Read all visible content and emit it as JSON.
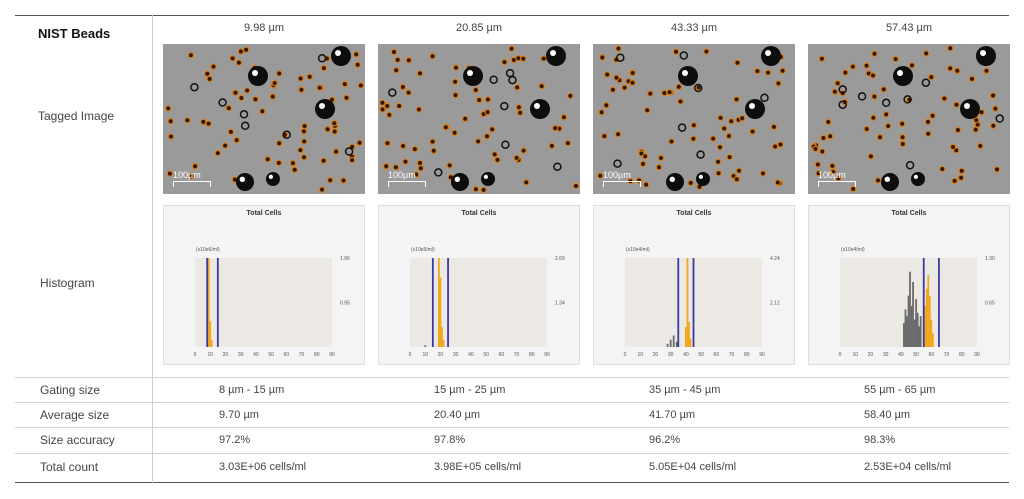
{
  "header": {
    "label": "NIST Beads"
  },
  "columns": [
    {
      "size": "9.98 µm",
      "unit": "(x10e6/ml)",
      "ymax": "1.90",
      "ymid": "0.95",
      "gating": "8 µm - 15 µm",
      "average": "9.70 µm",
      "accuracy": "97.2%",
      "count": "3.03E+06 cells/ml"
    },
    {
      "size": "20.85 µm",
      "unit": "(x10e5/ml)",
      "ymax": "2.69",
      "ymid": "1.34",
      "gating": "15 µm - 25 µm",
      "average": "20.40 µm",
      "accuracy": "97.8%",
      "count": "3.98E+05 cells/ml"
    },
    {
      "size": "43.33 µm",
      "unit": "(x10e4/ml)",
      "ymax": "4.24",
      "ymid": "2.12",
      "gating": "35 µm - 45 µm",
      "average": "41.70 µm",
      "accuracy": "96.2%",
      "count": "5.05E+04 cells/ml"
    },
    {
      "size": "57.43 µm",
      "unit": "(x10e4/ml)",
      "ymax": "1.30",
      "ymid": "0.65",
      "gating": "55 µm - 65 µm",
      "average": "58.40 µm",
      "accuracy": "98.3%",
      "count": "2.53E+04 cells/ml"
    }
  ],
  "row_labels": {
    "tagged": "Tagged Image",
    "histogram": "Histogram",
    "gating": "Gating size",
    "average": "Average size",
    "accuracy": "Size accuracy",
    "count": "Total count"
  },
  "image_scale": "100µm",
  "hist_title": "Total Cells",
  "hist_xticks": [
    "0",
    "10",
    "20",
    "30",
    "40",
    "50",
    "60",
    "70",
    "80",
    "90"
  ],
  "colors": {
    "gate": "#3a3aa0",
    "in_gate": "#f0a81e",
    "out_gate": "#6b6b6b",
    "tag": "#e07b12"
  },
  "chart_data": [
    {
      "type": "bar",
      "title": "Total Cells",
      "xlim": [
        0,
        90
      ],
      "gates": [
        8,
        15
      ],
      "bars": [
        {
          "x": 9,
          "y": 1.9,
          "in": true
        },
        {
          "x": 10,
          "y": 0.55,
          "in": true
        },
        {
          "x": 11,
          "y": 0.15,
          "in": true
        }
      ]
    },
    {
      "type": "bar",
      "title": "Total Cells",
      "xlim": [
        0,
        90
      ],
      "gates": [
        15,
        25
      ],
      "bars": [
        {
          "x": 10,
          "y": 0.05,
          "in": false
        },
        {
          "x": 19,
          "y": 2.69,
          "in": true
        },
        {
          "x": 20,
          "y": 2.1,
          "in": true
        },
        {
          "x": 21,
          "y": 0.6,
          "in": true
        },
        {
          "x": 22,
          "y": 0.2,
          "in": true
        }
      ]
    },
    {
      "type": "bar",
      "title": "Total Cells",
      "xlim": [
        0,
        90
      ],
      "gates": [
        35,
        45
      ],
      "bars": [
        {
          "x": 28,
          "y": 0.15,
          "in": false
        },
        {
          "x": 30,
          "y": 0.35,
          "in": false
        },
        {
          "x": 32,
          "y": 0.55,
          "in": false
        },
        {
          "x": 34,
          "y": 0.25,
          "in": false
        },
        {
          "x": 40,
          "y": 0.95,
          "in": true
        },
        {
          "x": 41,
          "y": 4.24,
          "in": true
        },
        {
          "x": 42,
          "y": 1.2,
          "in": true
        },
        {
          "x": 43,
          "y": 0.4,
          "in": true
        }
      ]
    },
    {
      "type": "bar",
      "title": "Total Cells",
      "xlim": [
        0,
        90
      ],
      "gates": [
        55,
        65
      ],
      "bars": [
        {
          "x": 42,
          "y": 0.35,
          "in": false
        },
        {
          "x": 43,
          "y": 0.55,
          "in": false
        },
        {
          "x": 44,
          "y": 0.45,
          "in": false
        },
        {
          "x": 45,
          "y": 0.75,
          "in": false
        },
        {
          "x": 46,
          "y": 1.1,
          "in": false
        },
        {
          "x": 47,
          "y": 0.6,
          "in": false
        },
        {
          "x": 48,
          "y": 0.95,
          "in": false
        },
        {
          "x": 49,
          "y": 0.4,
          "in": false
        },
        {
          "x": 50,
          "y": 0.7,
          "in": false
        },
        {
          "x": 51,
          "y": 0.5,
          "in": false
        },
        {
          "x": 52,
          "y": 0.3,
          "in": false
        },
        {
          "x": 53,
          "y": 0.45,
          "in": false
        },
        {
          "x": 56,
          "y": 0.6,
          "in": true
        },
        {
          "x": 57,
          "y": 0.85,
          "in": true
        },
        {
          "x": 58,
          "y": 1.05,
          "in": true
        },
        {
          "x": 59,
          "y": 0.75,
          "in": true
        },
        {
          "x": 60,
          "y": 0.4,
          "in": true
        },
        {
          "x": 61,
          "y": 0.2,
          "in": true
        }
      ]
    }
  ]
}
